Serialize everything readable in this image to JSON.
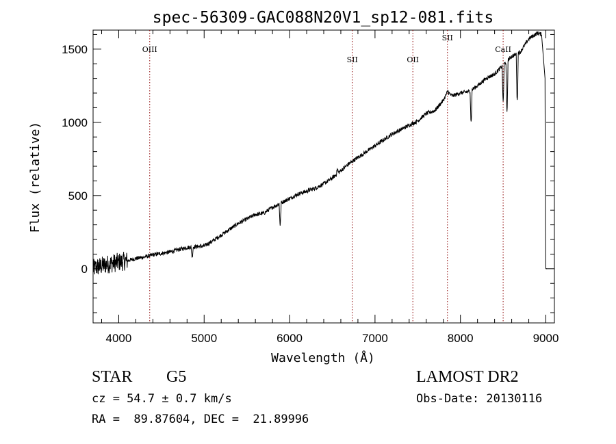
{
  "chart_data": {
    "type": "line",
    "title": "spec-56309-GAC088N20V1_sp12-081.fits",
    "xlabel": "Wavelength (Å)",
    "ylabel": "Flux (relative)",
    "xlim": [
      3700,
      9100
    ],
    "ylim": [
      -370,
      1630
    ],
    "xticks": [
      4000,
      5000,
      6000,
      7000,
      8000,
      9000
    ],
    "xtick_labels": [
      "4000",
      "5000",
      "6000",
      "7000",
      "8000",
      "9000"
    ],
    "yticks": [
      0,
      500,
      1000,
      1500
    ],
    "ytick_labels": [
      "0",
      "500",
      "1000",
      "1500"
    ],
    "grid": false,
    "line_color": "#000000",
    "marker_color": "#8b0000",
    "spectral_lines": [
      {
        "label": "OIII",
        "x": 4363,
        "label_flux": 1480
      },
      {
        "label": "SII",
        "x": 6734,
        "label_flux": 1410
      },
      {
        "label": "OII",
        "x": 7443,
        "label_flux": 1410
      },
      {
        "label": "SII",
        "x": 7848,
        "label_flux": 1560
      },
      {
        "label": "CaII",
        "x": 8500,
        "label_flux": 1480
      }
    ],
    "series": [
      {
        "x": [
          3700,
          3740,
          3800,
          3900,
          4000,
          4100,
          4200,
          4300,
          4400,
          4500,
          4600,
          4700,
          4800,
          4900,
          5000,
          5100,
          5200,
          5300,
          5400,
          5500,
          5600,
          5700,
          5800,
          5900,
          6000,
          6100,
          6200,
          6300,
          6400,
          6500,
          6600,
          6700,
          6800,
          6900,
          7000,
          7100,
          7200,
          7300,
          7400,
          7500,
          7600,
          7700,
          7800,
          7850,
          7900,
          8000,
          8100,
          8200,
          8300,
          8400,
          8500,
          8600,
          8700,
          8800,
          8900,
          8950,
          8990
        ],
        "y": [
          0,
          10,
          20,
          35,
          45,
          55,
          70,
          80,
          95,
          105,
          115,
          130,
          145,
          150,
          155,
          190,
          230,
          270,
          310,
          340,
          370,
          380,
          420,
          450,
          480,
          510,
          530,
          550,
          580,
          620,
          670,
          720,
          760,
          800,
          840,
          880,
          920,
          950,
          980,
          1010,
          1060,
          1080,
          1150,
          1210,
          1180,
          1200,
          1210,
          1250,
          1300,
          1330,
          1390,
          1450,
          1480,
          1570,
          1610,
          1600,
          0
        ],
        "absorption_dips": [
          {
            "x": 4860,
            "y": 80
          },
          {
            "x": 5890,
            "y": 300
          },
          {
            "x": 6560,
            "y": 680
          },
          {
            "x": 8125,
            "y": 1000
          },
          {
            "x": 8500,
            "y": 1140
          },
          {
            "x": 8545,
            "y": 1060
          },
          {
            "x": 8665,
            "y": 1140
          },
          {
            "x": 9000,
            "y": 300
          }
        ]
      }
    ]
  },
  "info": {
    "object_class": "STAR",
    "subclass": "G5",
    "survey": "LAMOST DR2",
    "redshift": "cz = 54.7 ± 0.7 km/s",
    "obs_date": "Obs-Date: 20130116",
    "coords": "RA =  89.87604, DEC =  21.89996"
  }
}
